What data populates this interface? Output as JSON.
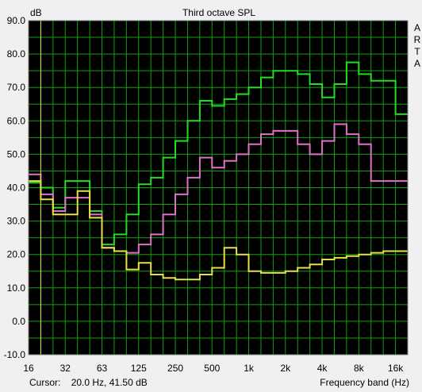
{
  "chart_data": {
    "type": "line",
    "title": "Third octave SPL",
    "ylabel": "dB",
    "xlabel": "Frequency band (Hz)",
    "ylim": [
      -10,
      90
    ],
    "yticks": [
      "90.0",
      "80.0",
      "70.0",
      "60.0",
      "50.0",
      "40.0",
      "30.0",
      "20.0",
      "10.0",
      "0.0",
      "-10.0"
    ],
    "x_bands": [
      "16",
      "20",
      "25",
      "31.5",
      "40",
      "50",
      "63",
      "80",
      "100",
      "125",
      "160",
      "200",
      "250",
      "315",
      "400",
      "500",
      "630",
      "800",
      "1k",
      "1.25k",
      "1.6k",
      "2k",
      "2.5k",
      "3.15k",
      "4k",
      "5k",
      "6.3k",
      "8k",
      "10k",
      "12.5k",
      "16k",
      "20k"
    ],
    "xticks": [
      "16",
      "32",
      "63",
      "125",
      "250",
      "500",
      "1k",
      "2k",
      "4k",
      "8k",
      "16k"
    ],
    "series": [
      {
        "color": "#22dd22",
        "values": [
          41.5,
          40,
          34,
          42,
          42,
          33,
          23,
          26,
          32,
          41,
          43,
          49,
          54,
          60,
          66,
          64.5,
          66.5,
          68,
          70,
          73,
          75,
          75,
          74,
          71,
          67,
          71,
          77.5,
          74,
          72,
          72,
          62
        ]
      },
      {
        "color": "#e070c8",
        "values": [
          44,
          38,
          33,
          37,
          37,
          32,
          22,
          21,
          20.5,
          23,
          26,
          32,
          38,
          43,
          49,
          46,
          48,
          50,
          53,
          56,
          57,
          57,
          53,
          50,
          54,
          59,
          56,
          53,
          42,
          42,
          42
        ]
      },
      {
        "color": "#e8e048",
        "values": [
          42,
          36.5,
          32,
          32,
          39,
          31,
          22,
          21,
          15.5,
          17.5,
          14,
          13,
          12.5,
          12.5,
          14,
          16,
          22,
          20,
          15,
          14.5,
          14.5,
          15,
          16,
          17,
          18.5,
          19,
          19.5,
          20,
          20.5,
          21,
          21
        ]
      }
    ]
  },
  "cursor": {
    "label": "Cursor:",
    "value": "20.0 Hz, 41.50 dB"
  },
  "brand": [
    "A",
    "R",
    "T",
    "A"
  ],
  "colors": {
    "background": "#000000",
    "grid": "#10a010",
    "cursor_line": "#e8e048",
    "frame": "#c0c0c0"
  }
}
